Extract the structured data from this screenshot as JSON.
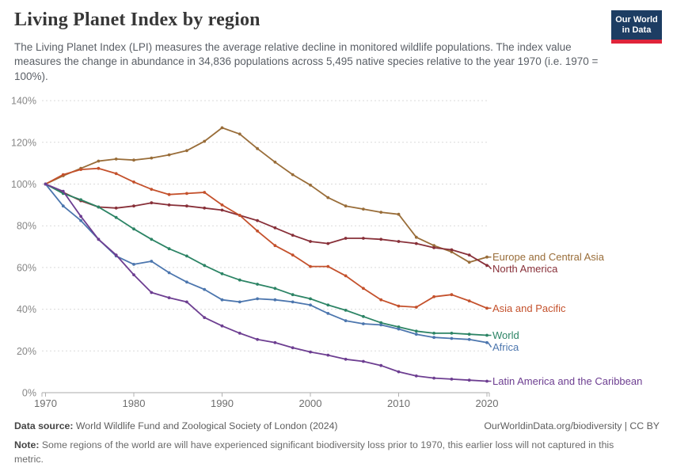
{
  "header": {
    "title": "Living Planet Index by region",
    "subtitle": "The Living Planet Index (LPI) measures the average relative decline in monitored wildlife populations. The index value measures the change in abundance in 34,836 populations across 5,495 native species relative to the year 1970 (i.e. 1970 = 100%).",
    "logo": {
      "line1": "Our World",
      "line2": "in Data",
      "bg_color": "#1D3D63",
      "accent_color": "#E0243A"
    }
  },
  "chart_data": {
    "type": "line",
    "title": "Living Planet Index by region",
    "xlabel": "",
    "ylabel": "",
    "ylim": [
      0,
      140
    ],
    "xlim": [
      1969.6,
      2020.5
    ],
    "grid": "horizontal-dashed",
    "legend_position": "line-end-labels-right",
    "yticks": [
      0,
      20,
      40,
      60,
      80,
      100,
      120,
      140
    ],
    "ytick_suffix": "%",
    "xticks": [
      1970,
      1980,
      1990,
      2000,
      2010,
      2020
    ],
    "x": [
      1970,
      1972,
      1974,
      1976,
      1978,
      1980,
      1982,
      1984,
      1986,
      1988,
      1990,
      1992,
      1994,
      1996,
      1998,
      2000,
      2002,
      2004,
      2006,
      2008,
      2010,
      2012,
      2014,
      2016,
      2018,
      2020
    ],
    "series": [
      {
        "name": "Europe and Central Asia",
        "color": "#996D39",
        "values": [
          100,
          104,
          107.5,
          111,
          112,
          111.5,
          112.5,
          114,
          116,
          120.5,
          127,
          124,
          117,
          110.5,
          104.5,
          99.5,
          93.5,
          89.5,
          88,
          86.5,
          85.5,
          74.5,
          70.5,
          67.5,
          62.5,
          65
        ]
      },
      {
        "name": "North America",
        "color": "#883039",
        "values": [
          100,
          96,
          92,
          89,
          88.5,
          89.5,
          91,
          90,
          89.5,
          88.5,
          87.5,
          85,
          82.5,
          79,
          75.5,
          72.5,
          71.5,
          74,
          74,
          73.5,
          72.5,
          71.5,
          69.5,
          68.5,
          66,
          61
        ]
      },
      {
        "name": "Asia and Pacific",
        "color": "#C4512C",
        "values": [
          100,
          104.5,
          107,
          107.5,
          105,
          101,
          97.5,
          95,
          95.5,
          96,
          90,
          85,
          77.5,
          70.5,
          66,
          60.5,
          60.5,
          56,
          50,
          44.5,
          41.5,
          41,
          46,
          47,
          44,
          40.5
        ]
      },
      {
        "name": "World",
        "color": "#2C8465",
        "values": [
          100,
          95.5,
          92.5,
          89,
          84,
          78.5,
          73.5,
          69,
          65.5,
          61,
          57,
          54,
          52,
          50,
          47,
          45,
          42,
          39.5,
          36.5,
          33.5,
          31.5,
          29.5,
          28.5,
          28.5,
          28,
          27.5
        ]
      },
      {
        "name": "Africa",
        "color": "#4C76AE",
        "values": [
          100,
          89.5,
          82.5,
          73.5,
          65.5,
          61.5,
          63,
          57.5,
          53,
          49.5,
          44.5,
          43.5,
          45,
          44.5,
          43.5,
          42,
          38,
          34.5,
          33,
          32.5,
          30.5,
          28,
          26.5,
          26,
          25.5,
          24
        ]
      },
      {
        "name": "Latin America and the Caribbean",
        "color": "#6D3E91",
        "values": [
          100,
          96.5,
          84.5,
          73.5,
          66,
          56.5,
          48,
          45.5,
          43.5,
          36,
          32,
          28.5,
          25.5,
          24,
          21.5,
          19.5,
          18,
          16,
          15,
          13,
          10,
          8,
          7,
          6.5,
          6,
          5.5
        ]
      }
    ]
  },
  "footer": {
    "datasource_label": "Data source:",
    "datasource": " World Wildlife Fund and Zoological Society of London (2024)",
    "link": "OurWorldinData.org/biodiversity | CC BY",
    "note_label": "Note:",
    "note": " Some regions of the world are will have experienced significant biodiversity loss prior to 1970, this earlier loss will not captured in this metric."
  }
}
